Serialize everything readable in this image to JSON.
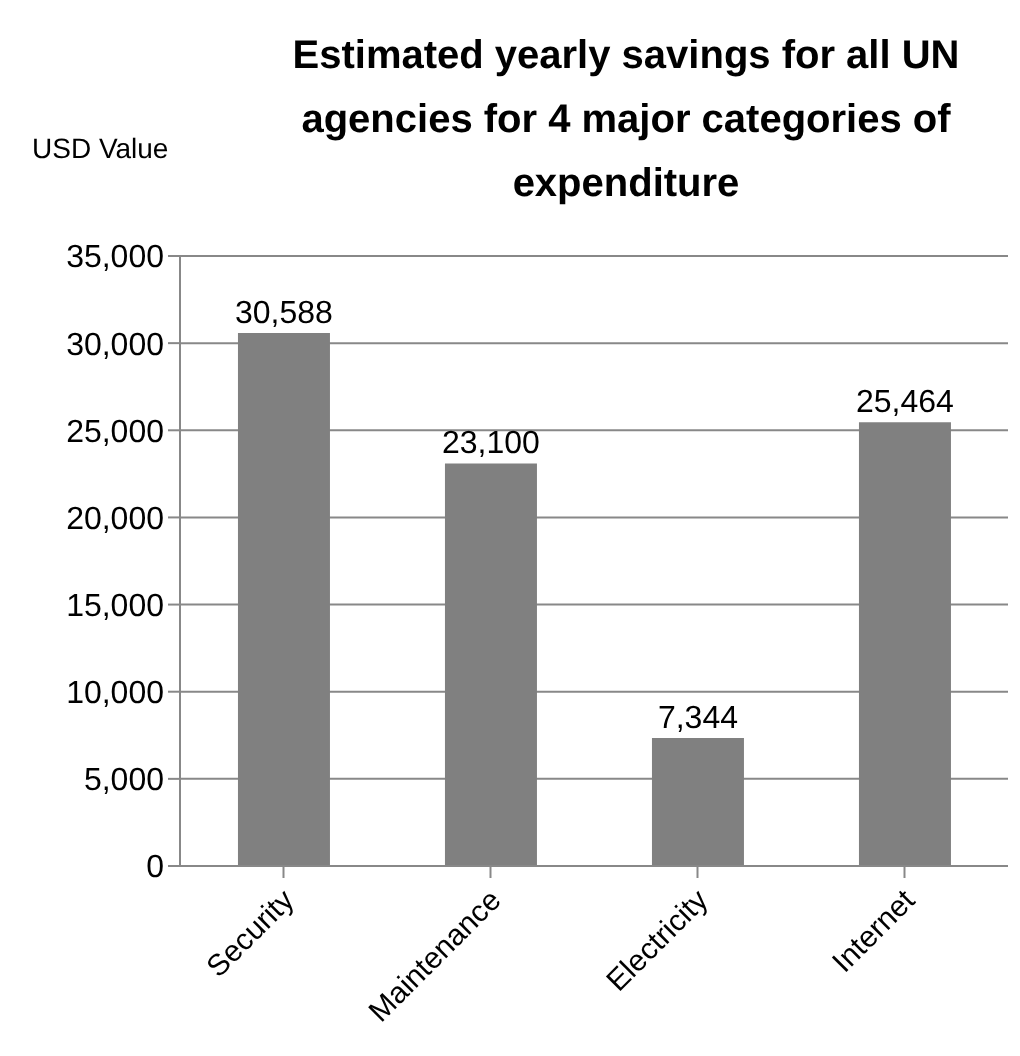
{
  "chart_data": {
    "type": "bar",
    "title": "Estimated yearly savings for all UN agencies for 4 major categories of expenditure",
    "ylabel": "USD Value",
    "categories": [
      "Security",
      "Maintenance",
      "Electricity",
      "Internet"
    ],
    "values": [
      30588,
      23100,
      7344,
      25464
    ],
    "value_labels": [
      "30,588",
      "23,100",
      "7,344",
      "25,464"
    ],
    "color": "#808080",
    "ylim": [
      0,
      35000
    ],
    "yticks": [
      0,
      {
        "value": 5000,
        "label": "5,000"
      },
      {
        "value": 10000,
        "label": "10,000"
      },
      {
        "value": 15000,
        "label": "15,000"
      },
      {
        "value": 20000,
        "label": "20,000"
      },
      {
        "value": 25000,
        "label": "25,000"
      },
      {
        "value": 30000,
        "label": "30,000"
      },
      {
        "value": 35000,
        "label": "35,000"
      }
    ],
    "grid": "y"
  }
}
